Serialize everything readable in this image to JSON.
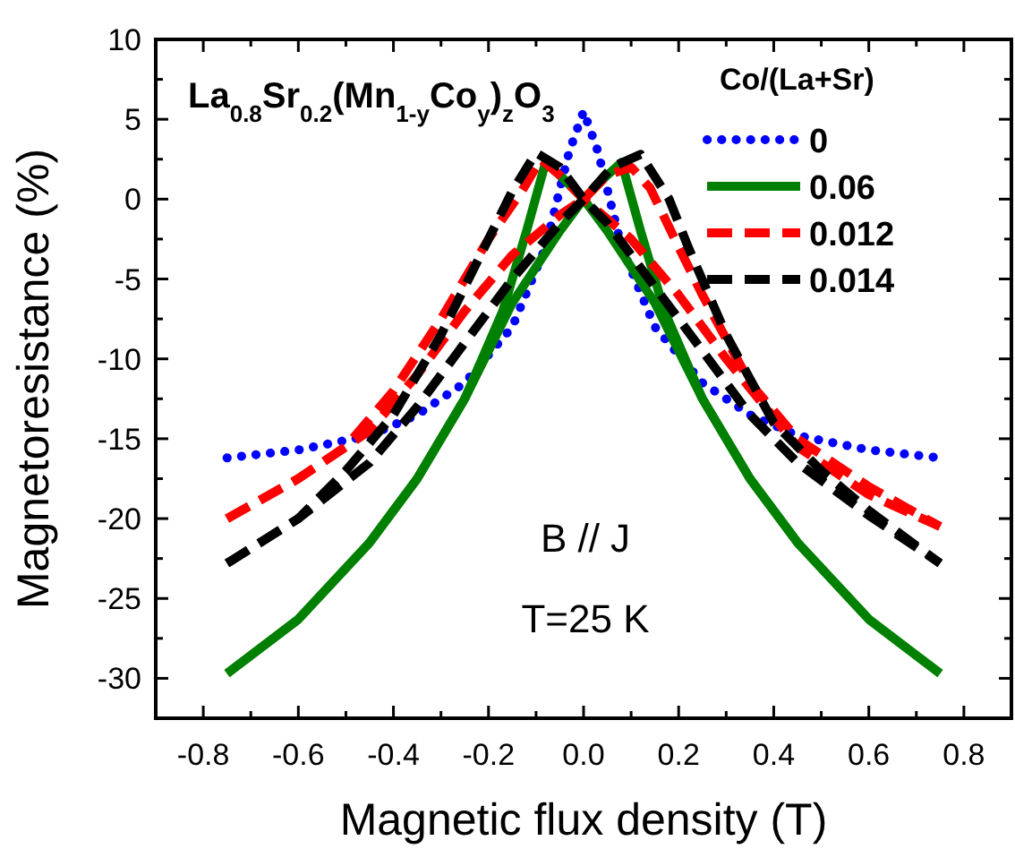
{
  "chart_data": {
    "type": "line",
    "xlabel": "Magnetic flux density (T)",
    "ylabel": "Magnetoresistance (%)",
    "legend_title": "Co/(La+Sr)",
    "legend": "top right",
    "grid": false,
    "xlim": [
      -0.9,
      0.9
    ],
    "ylim": [
      -32.5,
      10
    ],
    "xticks": [
      -0.8,
      {
        "value": -0.7,
        "label": null
      },
      -0.6,
      {
        "value": -0.5,
        "label": null
      },
      -0.4,
      {
        "value": -0.3,
        "label": null
      },
      -0.2,
      {
        "value": -0.1,
        "label": null
      },
      {
        "value": 0,
        "label": "0.0"
      },
      {
        "value": 0.1,
        "label": null
      },
      0.2,
      {
        "value": 0.3,
        "label": null
      },
      0.4,
      {
        "value": 0.5,
        "label": null
      },
      0.6,
      {
        "value": 0.7,
        "label": null
      },
      0.8
    ],
    "yticks": [
      -30,
      {
        "value": -27.5,
        "label": null
      },
      -25,
      {
        "value": -22.5,
        "label": null
      },
      -20,
      {
        "value": -17.5,
        "label": null
      },
      -15,
      {
        "value": -12.5,
        "label": null
      },
      -10,
      {
        "value": -7.5,
        "label": null
      },
      -5,
      {
        "value": -2.5,
        "label": null
      },
      0,
      {
        "value": 2.5,
        "label": null
      },
      5,
      {
        "value": 7.5,
        "label": null
      },
      10
    ],
    "annotations": [
      "La$_{0.8}$Sr$_{0.2}$(Mn$_{1-y}$Co$_{y}$)$_{z}$O$_{3}$",
      "B // J",
      "T=25 K"
    ],
    "series": [
      {
        "name": "0",
        "color": "#0000ff",
        "line_style": "dotted",
        "x": [
          -0.75,
          -0.6,
          -0.45,
          -0.35,
          -0.25,
          -0.15,
          -0.08,
          -0.03,
          0,
          0.03,
          0.08,
          0.15,
          0.25,
          0.35,
          0.45,
          0.6,
          0.75
        ],
        "values": [
          -16.2,
          -15.7,
          -14.8,
          -13.5,
          -11.5,
          -8,
          -3,
          3,
          5.5,
          3,
          -3,
          -8,
          -11.5,
          -13.5,
          -14.8,
          -15.7,
          -16.2
        ]
      },
      {
        "name": "0.06",
        "color": "#008000",
        "line_style": "solid",
        "x": [
          -0.75,
          -0.6,
          -0.45,
          -0.35,
          -0.25,
          -0.15,
          -0.05,
          0,
          0.05,
          0.08,
          0.12,
          0.17,
          0.25,
          0.35,
          0.45,
          0.6,
          0.75
        ],
        "values": [
          -29.7,
          -26.3,
          -21.5,
          -17.5,
          -12.5,
          -6.5,
          -2,
          0,
          1.5,
          2.3,
          -2,
          -7,
          -12.5,
          -17.5,
          -21.5,
          -26.3,
          -29.7
        ]
      },
      {
        "color": "#008000",
        "line_style": "solid",
        "x": [
          -0.75,
          -0.6,
          -0.45,
          -0.35,
          -0.25,
          -0.17,
          -0.12,
          -0.08,
          -0.05,
          0,
          0.05,
          0.15,
          0.25,
          0.35,
          0.45,
          0.6,
          0.75
        ],
        "values": [
          -29.7,
          -26.3,
          -21.5,
          -17.5,
          -12.5,
          -7,
          -2,
          2.3,
          1.5,
          0,
          -2,
          -6.5,
          -12.5,
          -17.5,
          -21.5,
          -26.3,
          -29.7
        ]
      },
      {
        "name": "0.012",
        "color": "#ff0000",
        "line_style": "dashed",
        "x": [
          -0.75,
          -0.6,
          -0.45,
          -0.35,
          -0.25,
          -0.15,
          -0.05,
          0,
          0.05,
          0.1,
          0.14,
          0.2,
          0.25,
          0.35,
          0.45,
          0.6,
          0.75
        ],
        "values": [
          -20,
          -17.5,
          -14.5,
          -11,
          -7,
          -3.5,
          -1,
          0,
          1.5,
          2,
          0.7,
          -3,
          -6,
          -11.5,
          -15,
          -18,
          -20.5
        ]
      },
      {
        "color": "#ff0000",
        "line_style": "dashed",
        "x": [
          -0.75,
          -0.6,
          -0.5,
          -0.4,
          -0.3,
          -0.2,
          -0.13,
          -0.09,
          -0.05,
          0,
          0.1,
          0.2,
          0.3,
          0.45,
          0.6,
          0.75
        ],
        "values": [
          -20,
          -17.5,
          -15.5,
          -12,
          -7.5,
          -2.5,
          0.5,
          2.5,
          1.5,
          0,
          -2.5,
          -6,
          -10,
          -15.5,
          -18.5,
          -20.5
        ]
      },
      {
        "name": "0.014",
        "color": "#000000",
        "line_style": "dashed",
        "x": [
          -0.75,
          -0.6,
          -0.45,
          -0.35,
          -0.25,
          -0.15,
          -0.05,
          0,
          0.06,
          0.12,
          0.18,
          0.22,
          0.3,
          0.4,
          0.5,
          0.6,
          0.75
        ],
        "values": [
          -22.8,
          -20,
          -16.5,
          -13,
          -9,
          -5,
          -1.5,
          0,
          2,
          2.8,
          0,
          -3,
          -8.5,
          -14,
          -17,
          -19.5,
          -22.8
        ]
      },
      {
        "color": "#000000",
        "line_style": "dashed",
        "x": [
          -0.75,
          -0.6,
          -0.5,
          -0.4,
          -0.3,
          -0.2,
          -0.15,
          -0.1,
          -0.05,
          0,
          0.05,
          0.15,
          0.25,
          0.35,
          0.45,
          0.6,
          0.75
        ],
        "values": [
          -22.8,
          -20,
          -17,
          -13.5,
          -8.5,
          -2.5,
          0.5,
          2.9,
          2,
          0,
          -1.5,
          -5.5,
          -9.5,
          -13.5,
          -16.5,
          -19.8,
          -22.8
        ]
      }
    ]
  }
}
